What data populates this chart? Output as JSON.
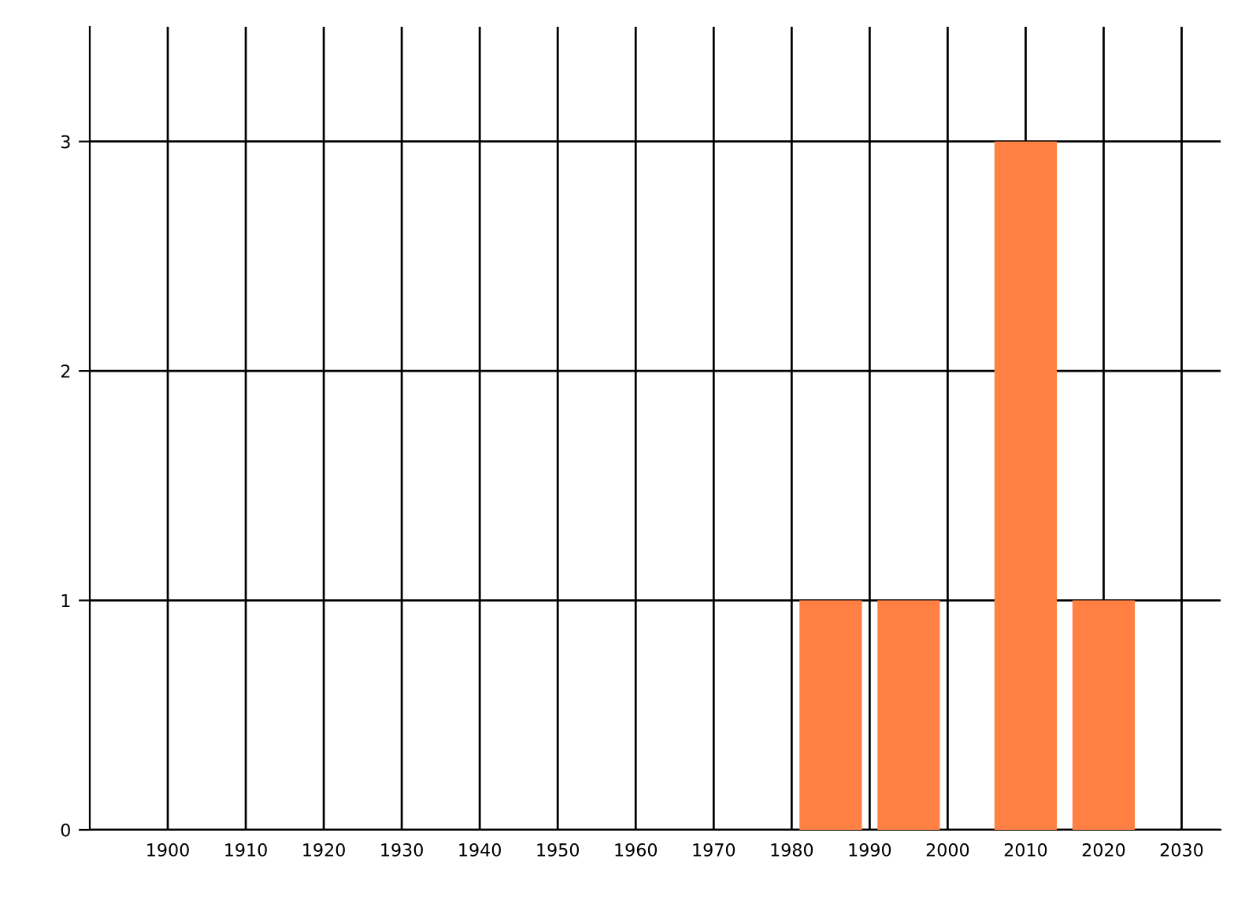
{
  "chart_data": {
    "type": "bar",
    "x": [
      1985,
      1995,
      2010,
      2020
    ],
    "values": [
      1,
      1,
      3,
      1
    ],
    "color": "#ff8042",
    "xlim": [
      1890,
      2035
    ],
    "xticks": [
      1900,
      1910,
      1920,
      1930,
      1940,
      1950,
      1960,
      1970,
      1980,
      1990,
      2000,
      2010,
      2020,
      2030
    ],
    "ylim": [
      0,
      3.5
    ],
    "yticks": [
      0,
      1,
      2,
      3
    ],
    "grid": true
  }
}
